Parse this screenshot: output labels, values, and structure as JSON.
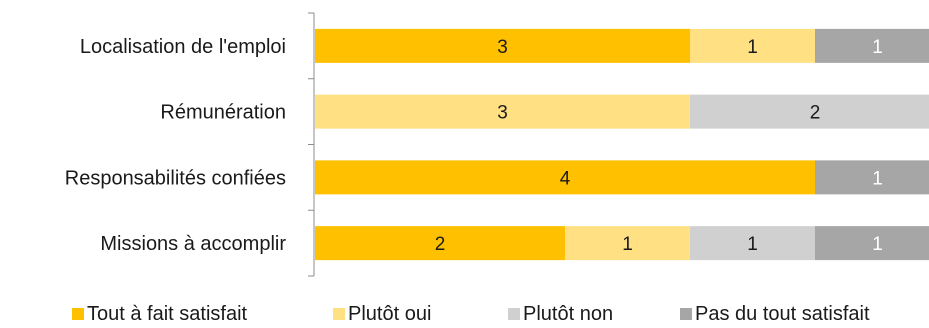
{
  "chart_data": {
    "type": "bar",
    "orientation": "horizontal",
    "stacked": true,
    "categories": [
      "Localisation de l'emploi",
      "Rémunération",
      "Responsabilités confiées",
      "Missions à accomplir"
    ],
    "series": [
      {
        "name": "Tout à fait satisfait",
        "values": [
          3,
          0,
          4,
          2
        ],
        "color": "#FFC000"
      },
      {
        "name": "Plutôt oui",
        "values": [
          1,
          3,
          0,
          1
        ],
        "color": "#FFE082"
      },
      {
        "name": "Plutôt non",
        "values": [
          0,
          2,
          0,
          1
        ],
        "color": "#D0D0D0"
      },
      {
        "name": "Pas du tout satisfait",
        "values": [
          1,
          0,
          1,
          1
        ],
        "color": "#A6A6A6"
      }
    ],
    "label_colors": [
      "#1a1a1a",
      "#1a1a1a",
      "#1a1a1a",
      "#ffffff"
    ],
    "xlim": [
      0,
      5
    ],
    "grid": false,
    "legend_position": "bottom"
  }
}
